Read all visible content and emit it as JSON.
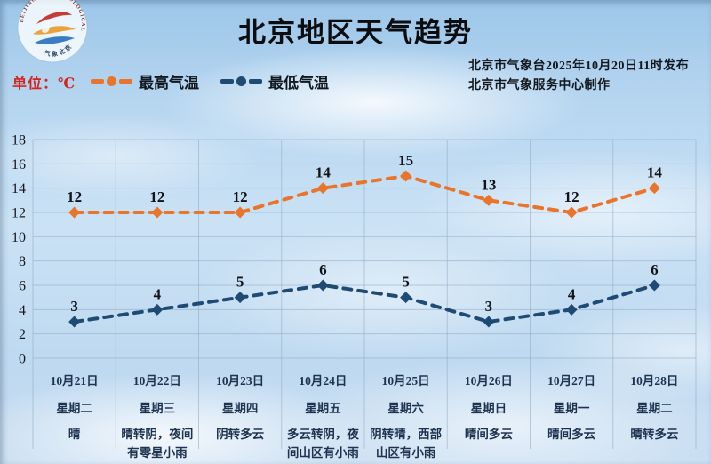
{
  "header": {
    "title": "北京地区天气趋势",
    "unit_label": "单位：℃",
    "issue_line1": "北京市气象台2025年10月20日11时发布",
    "issue_line2": "北京市气象服务中心制作",
    "logo_ring_text": "BEIJING METEOROLOGICAL SERVICE",
    "logo_bottom_text": "气象北京"
  },
  "colors": {
    "max_series": "#E8752B",
    "min_series": "#1F4A73",
    "grid": "#8FA9C2",
    "axis_text": "#16181c",
    "data_label": "#101418"
  },
  "chart_data": {
    "type": "line",
    "title": "北京地区天气趋势",
    "ylabel": "℃",
    "ylim": [
      0,
      18
    ],
    "ytick_step": 2,
    "grid": true,
    "legend_position": "top-left",
    "categories": [
      "10月21日",
      "10月22日",
      "10月23日",
      "10月24日",
      "10月25日",
      "10月26日",
      "10月27日",
      "10月28日"
    ],
    "weekdays": [
      "星期二",
      "星期三",
      "星期四",
      "星期五",
      "星期六",
      "星期日",
      "星期一",
      "星期二"
    ],
    "weather": [
      "晴",
      "晴转阴，夜间有零星小雨",
      "阴转多云",
      "多云转阴，夜间山区有小雨",
      "阴转晴，西部山区有小雨",
      "晴间多云",
      "晴间多云",
      "晴转多云"
    ],
    "series": [
      {
        "name": "最高气温",
        "color": "#E8752B",
        "values": [
          12,
          12,
          12,
          14,
          15,
          13,
          12,
          14
        ]
      },
      {
        "name": "最低气温",
        "color": "#1F4A73",
        "values": [
          3,
          4,
          5,
          6,
          5,
          3,
          4,
          6
        ]
      }
    ]
  }
}
